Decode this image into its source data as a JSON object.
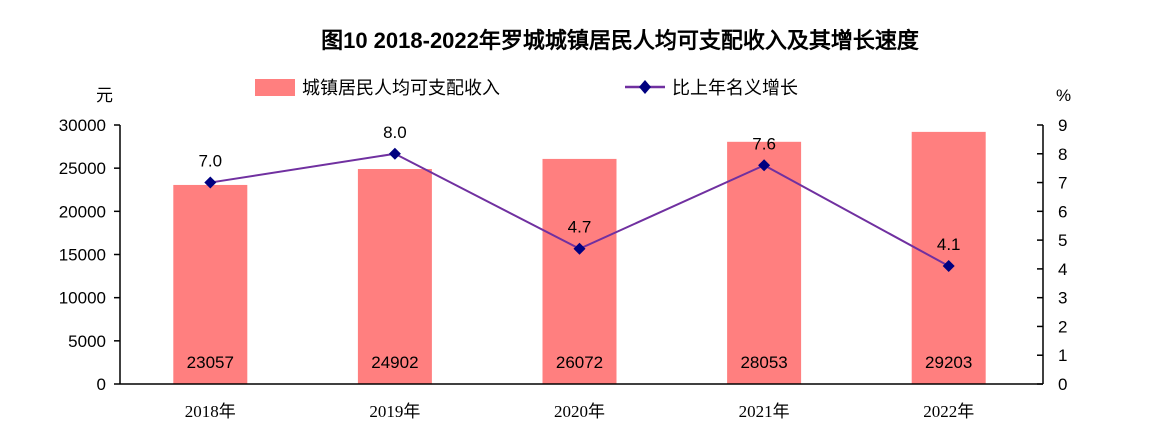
{
  "chart_data": {
    "type": "bar+line",
    "title": "图10 2018-2022年罗城城镇居民人均可支配收入及其增长速度",
    "categories": [
      "2018年",
      "2019年",
      "2020年",
      "2021年",
      "2022年"
    ],
    "series": [
      {
        "name": "城镇居民人均可支配收入",
        "type": "bar",
        "axis": "left",
        "values": [
          23057,
          24902,
          26072,
          28053,
          29203
        ],
        "labels": [
          "23057",
          "24902",
          "26072",
          "28053",
          "29203"
        ],
        "color": "#FF7F7F"
      },
      {
        "name": "比上年名义增长",
        "type": "line",
        "axis": "right",
        "values": [
          7.0,
          8.0,
          4.7,
          7.6,
          4.1
        ],
        "labels": [
          "7.0",
          "8.0",
          "4.7",
          "7.6",
          "4.1"
        ],
        "color": "#7030A0",
        "marker_color": "#000080"
      }
    ],
    "ylabel": "元",
    "y2label": "%",
    "ylim": [
      0,
      30000
    ],
    "y2lim": [
      0,
      9
    ],
    "yticks": [
      "0",
      "5000",
      "10000",
      "15000",
      "20000",
      "25000",
      "30000"
    ],
    "y2ticks": [
      "0",
      "1",
      "2",
      "3",
      "4",
      "5",
      "6",
      "7",
      "8",
      "9"
    ],
    "legend": "top-center",
    "grid": false
  }
}
